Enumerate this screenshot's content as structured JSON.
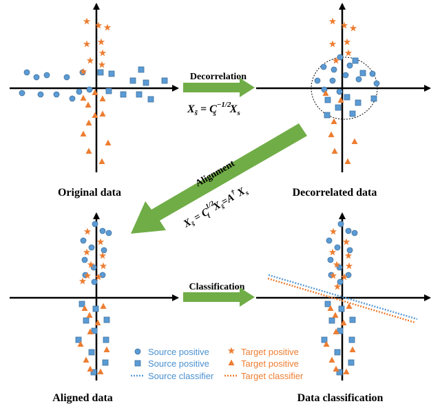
{
  "colors": {
    "source": "#5b9bd5",
    "source_text": "#4a90d0",
    "target": "#ed7d31",
    "arrow_green": "#70ad47",
    "axis": "#000000"
  },
  "panels": {
    "original": {
      "caption": "Original data"
    },
    "decorrelated": {
      "caption": "Decorrelated data"
    },
    "aligned": {
      "caption": "Aligned data"
    },
    "classified": {
      "caption": "Data classification"
    }
  },
  "steps": {
    "decorrelation": {
      "label": "Decorrelation",
      "equation": {
        "lhs": "X",
        "lhs_sub": "s̃",
        "eq": " = ",
        "rhs": "C",
        "rhs_sub": "s",
        "rhs_sup": "−1/2",
        "tail": "X",
        "tail_sub": "s"
      }
    },
    "alignment": {
      "label": "Alignment",
      "equation": {
        "lhs": "X",
        "lhs_sub": "s̃",
        "eq": " = ",
        "c": "C",
        "c_sub": "t",
        "c_sup": "1/2",
        "x2": "X",
        "x2_sub": "s̃",
        "eq2": "=",
        "a": "A",
        "a_sup": "†",
        "x3": "X",
        "x3_sub": "s"
      }
    },
    "classification": {
      "label": "Classification"
    }
  },
  "legend": {
    "source_circle": {
      "icon": "circle-marker",
      "label": "Source positive"
    },
    "source_square": {
      "icon": "square-marker",
      "label": "Source positive"
    },
    "source_classifier": {
      "icon": "dotted-line",
      "label": "Source classifier"
    },
    "target_star": {
      "icon": "star-marker",
      "label": "Target positive"
    },
    "target_triangle": {
      "icon": "triangle-marker",
      "label": "Target positive"
    },
    "target_classifier": {
      "icon": "dotted-line",
      "label": "Target classifier"
    }
  }
}
